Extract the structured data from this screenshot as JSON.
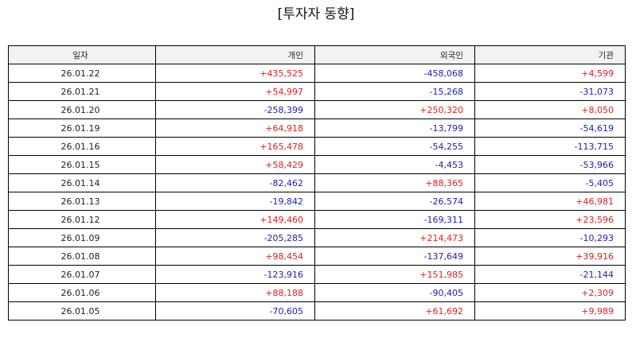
{
  "title": "[투자자 동향]",
  "colors": {
    "positive": "#e02020",
    "negative": "#2020b0",
    "header_bg": "#f2f2f2"
  },
  "table": {
    "headers": [
      "일자",
      "개인",
      "외국인",
      "기관"
    ],
    "rows": [
      [
        "26.01.22",
        "+435,525",
        "-458,068",
        "+4,599"
      ],
      [
        "26.01.21",
        "+54,997",
        "-15,268",
        "-31,073"
      ],
      [
        "26.01.20",
        "-258,399",
        "+250,320",
        "+8,050"
      ],
      [
        "26.01.19",
        "+64,918",
        "-13,799",
        "-54,619"
      ],
      [
        "26.01.16",
        "+165,478",
        "-54,255",
        "-113,715"
      ],
      [
        "26.01.15",
        "+58,429",
        "-4,453",
        "-53,966"
      ],
      [
        "26.01.14",
        "-82,462",
        "+88,365",
        "-5,405"
      ],
      [
        "26.01.13",
        "-19,842",
        "-26,574",
        "+46,981"
      ],
      [
        "26.01.12",
        "+149,460",
        "-169,311",
        "+23,596"
      ],
      [
        "26.01.09",
        "-205,285",
        "+214,473",
        "-10,293"
      ],
      [
        "26.01.08",
        "+98,454",
        "-137,649",
        "+39,916"
      ],
      [
        "26.01.07",
        "-123,916",
        "+151,985",
        "-21,144"
      ],
      [
        "26.01.06",
        "+88,188",
        "-90,405",
        "+2,309"
      ],
      [
        "26.01.05",
        "-70,605",
        "+61,692",
        "+9,989"
      ]
    ]
  }
}
